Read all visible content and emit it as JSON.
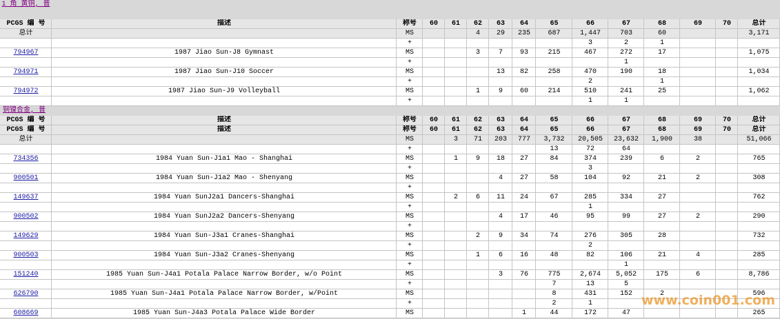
{
  "sections": [
    {
      "title": "1 角 黄铜, 普",
      "header_rows": [
        [
          "PCGS 编 号",
          "描述",
          "称号",
          "60",
          "61",
          "62",
          "63",
          "64",
          "65",
          "66",
          "67",
          "68",
          "69",
          "70",
          "总计"
        ]
      ],
      "rows": [
        [
          "总计",
          null,
          "MS",
          null,
          null,
          "4",
          "29",
          "235",
          "687",
          "1,447",
          "703",
          "60",
          null,
          null,
          "3,171"
        ],
        [
          null,
          null,
          "+",
          null,
          null,
          null,
          null,
          null,
          null,
          "3",
          "2",
          "1",
          null,
          null,
          null
        ],
        [
          "794967",
          "1987 Jiao Sun-J8 Gymnast",
          "MS",
          null,
          null,
          "3",
          "7",
          "93",
          "215",
          "467",
          "272",
          "17",
          null,
          null,
          "1,075"
        ],
        [
          null,
          null,
          "+",
          null,
          null,
          null,
          null,
          null,
          null,
          null,
          "1",
          null,
          null,
          null,
          null
        ],
        [
          "794971",
          "1987 Jiao Sun-J10 Soccer",
          "MS",
          null,
          null,
          null,
          "13",
          "82",
          "258",
          "470",
          "190",
          "18",
          null,
          null,
          "1,034"
        ],
        [
          null,
          null,
          "+",
          null,
          null,
          null,
          null,
          null,
          null,
          "2",
          null,
          "1",
          null,
          null,
          null
        ],
        [
          "794972",
          "1987 Jiao Sun-J9 Volleyball",
          "MS",
          null,
          null,
          "1",
          "9",
          "60",
          "214",
          "510",
          "241",
          "25",
          null,
          null,
          "1,062"
        ],
        [
          null,
          null,
          "+",
          null,
          null,
          null,
          null,
          null,
          null,
          "1",
          "1",
          null,
          null,
          null,
          null
        ]
      ]
    },
    {
      "title": "铜镍合金, 普",
      "header_rows": [
        [
          "PCGS 编 号",
          "描述",
          "称号",
          "60",
          "61",
          "62",
          "63",
          "64",
          "65",
          "66",
          "67",
          "68",
          "69",
          "70",
          "总计"
        ],
        [
          "PCGS 编 号",
          "描述",
          "称号",
          "60",
          "61",
          "62",
          "63",
          "64",
          "65",
          "66",
          "67",
          "68",
          "69",
          "70",
          "总计"
        ]
      ],
      "rows": [
        [
          "总计",
          null,
          "MS",
          null,
          "3",
          "71",
          "203",
          "777",
          "3,732",
          "20,505",
          "23,632",
          "1,900",
          "38",
          null,
          "51,066"
        ],
        [
          null,
          null,
          "+",
          null,
          null,
          null,
          null,
          null,
          "13",
          "72",
          "64",
          null,
          null,
          null,
          null
        ],
        [
          "734356",
          "1984 Yuan Sun-J1a1 Mao - Shanghai",
          "MS",
          null,
          "1",
          "9",
          "18",
          "27",
          "84",
          "374",
          "239",
          "6",
          "2",
          null,
          "765"
        ],
        [
          null,
          null,
          "+",
          null,
          null,
          null,
          null,
          null,
          null,
          "3",
          null,
          null,
          null,
          null,
          null
        ],
        [
          "900501",
          "1984 Yuan Sun-J1a2 Mao - Shenyang",
          "MS",
          null,
          null,
          null,
          "4",
          "27",
          "58",
          "104",
          "92",
          "21",
          "2",
          null,
          "308"
        ],
        [
          null,
          null,
          "+",
          null,
          null,
          null,
          null,
          null,
          null,
          null,
          null,
          null,
          null,
          null,
          null
        ],
        [
          "149637",
          "1984 Yuan SunJ2a1 Dancers-Shanghai",
          "MS",
          null,
          "2",
          "6",
          "11",
          "24",
          "67",
          "285",
          "334",
          "27",
          null,
          null,
          "762"
        ],
        [
          null,
          null,
          "+",
          null,
          null,
          null,
          null,
          null,
          null,
          "1",
          null,
          null,
          null,
          null,
          null
        ],
        [
          "900502",
          "1984 Yuan SunJ2a2 Dancers-Shenyang",
          "MS",
          null,
          null,
          null,
          "4",
          "17",
          "46",
          "95",
          "99",
          "27",
          "2",
          null,
          "290"
        ],
        [
          null,
          null,
          "+",
          null,
          null,
          null,
          null,
          null,
          null,
          null,
          null,
          null,
          null,
          null,
          null
        ],
        [
          "149629",
          "1984 Yuan Sun-J3a1 Cranes-Shanghai",
          "MS",
          null,
          null,
          "2",
          "9",
          "34",
          "74",
          "276",
          "305",
          "28",
          null,
          null,
          "732"
        ],
        [
          null,
          null,
          "+",
          null,
          null,
          null,
          null,
          null,
          null,
          "2",
          null,
          null,
          null,
          null,
          null
        ],
        [
          "900503",
          "1984 Yuan Sun-J3a2 Cranes-Shenyang",
          "MS",
          null,
          null,
          "1",
          "6",
          "16",
          "48",
          "82",
          "106",
          "21",
          "4",
          null,
          "285"
        ],
        [
          null,
          null,
          "+",
          null,
          null,
          null,
          null,
          null,
          null,
          null,
          "1",
          null,
          null,
          null,
          null
        ],
        [
          "151240",
          "1985 Yuan Sun-J4a1 Potala Palace Narrow Border, w/o Point",
          "MS",
          null,
          null,
          null,
          "3",
          "76",
          "775",
          "2,674",
          "5,052",
          "175",
          "6",
          null,
          "8,786"
        ],
        [
          null,
          null,
          "+",
          null,
          null,
          null,
          null,
          null,
          "7",
          "13",
          "5",
          null,
          null,
          null,
          null
        ],
        [
          "626790",
          "1985 Yuan Sun-J4a1 Potala Palace Narrow Border, w/Point",
          "MS",
          null,
          null,
          null,
          null,
          null,
          "8",
          "431",
          "152",
          "2",
          null,
          null,
          "596"
        ],
        [
          null,
          null,
          "+",
          null,
          null,
          null,
          null,
          null,
          "2",
          "1",
          null,
          null,
          null,
          null,
          null
        ],
        [
          "608669",
          "1985 Yuan Sun-J4a3 Potala Palace Wide Border",
          "MS",
          null,
          null,
          null,
          null,
          "1",
          "44",
          "172",
          "47",
          null,
          null,
          null,
          "265"
        ]
      ]
    }
  ],
  "watermark": "www.coin001.com"
}
